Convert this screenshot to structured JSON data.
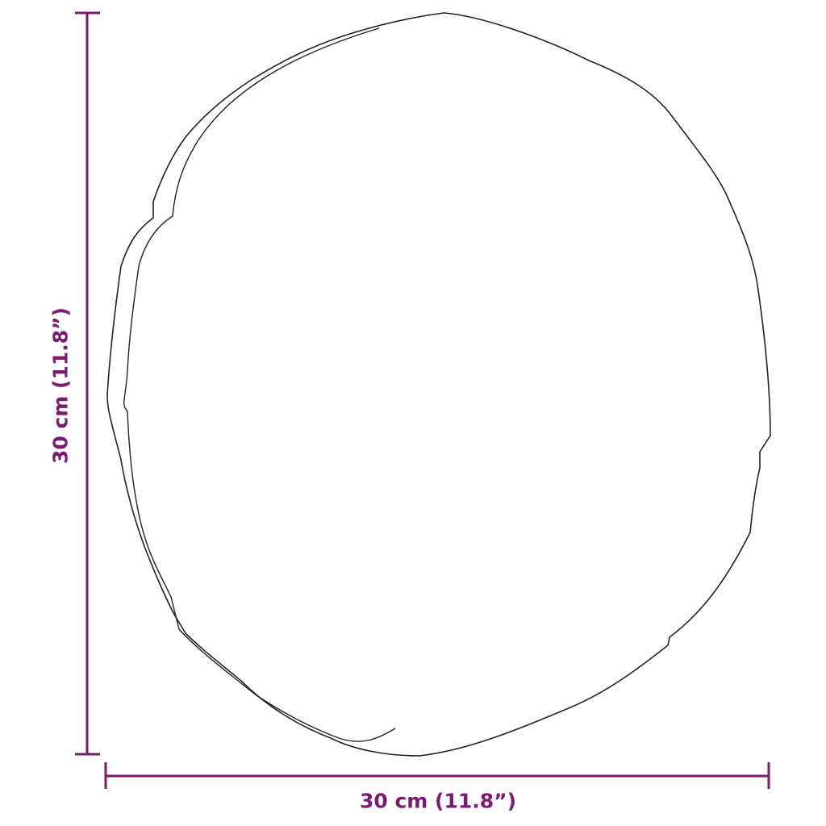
{
  "dimensions": {
    "width_label": "30 cm (11.8”)",
    "height_label": "30 cm (11.8”)"
  },
  "colors": {
    "dimension": "#7b1a72",
    "outline": "#222222"
  },
  "object": {
    "shape": "round mirror outline"
  }
}
